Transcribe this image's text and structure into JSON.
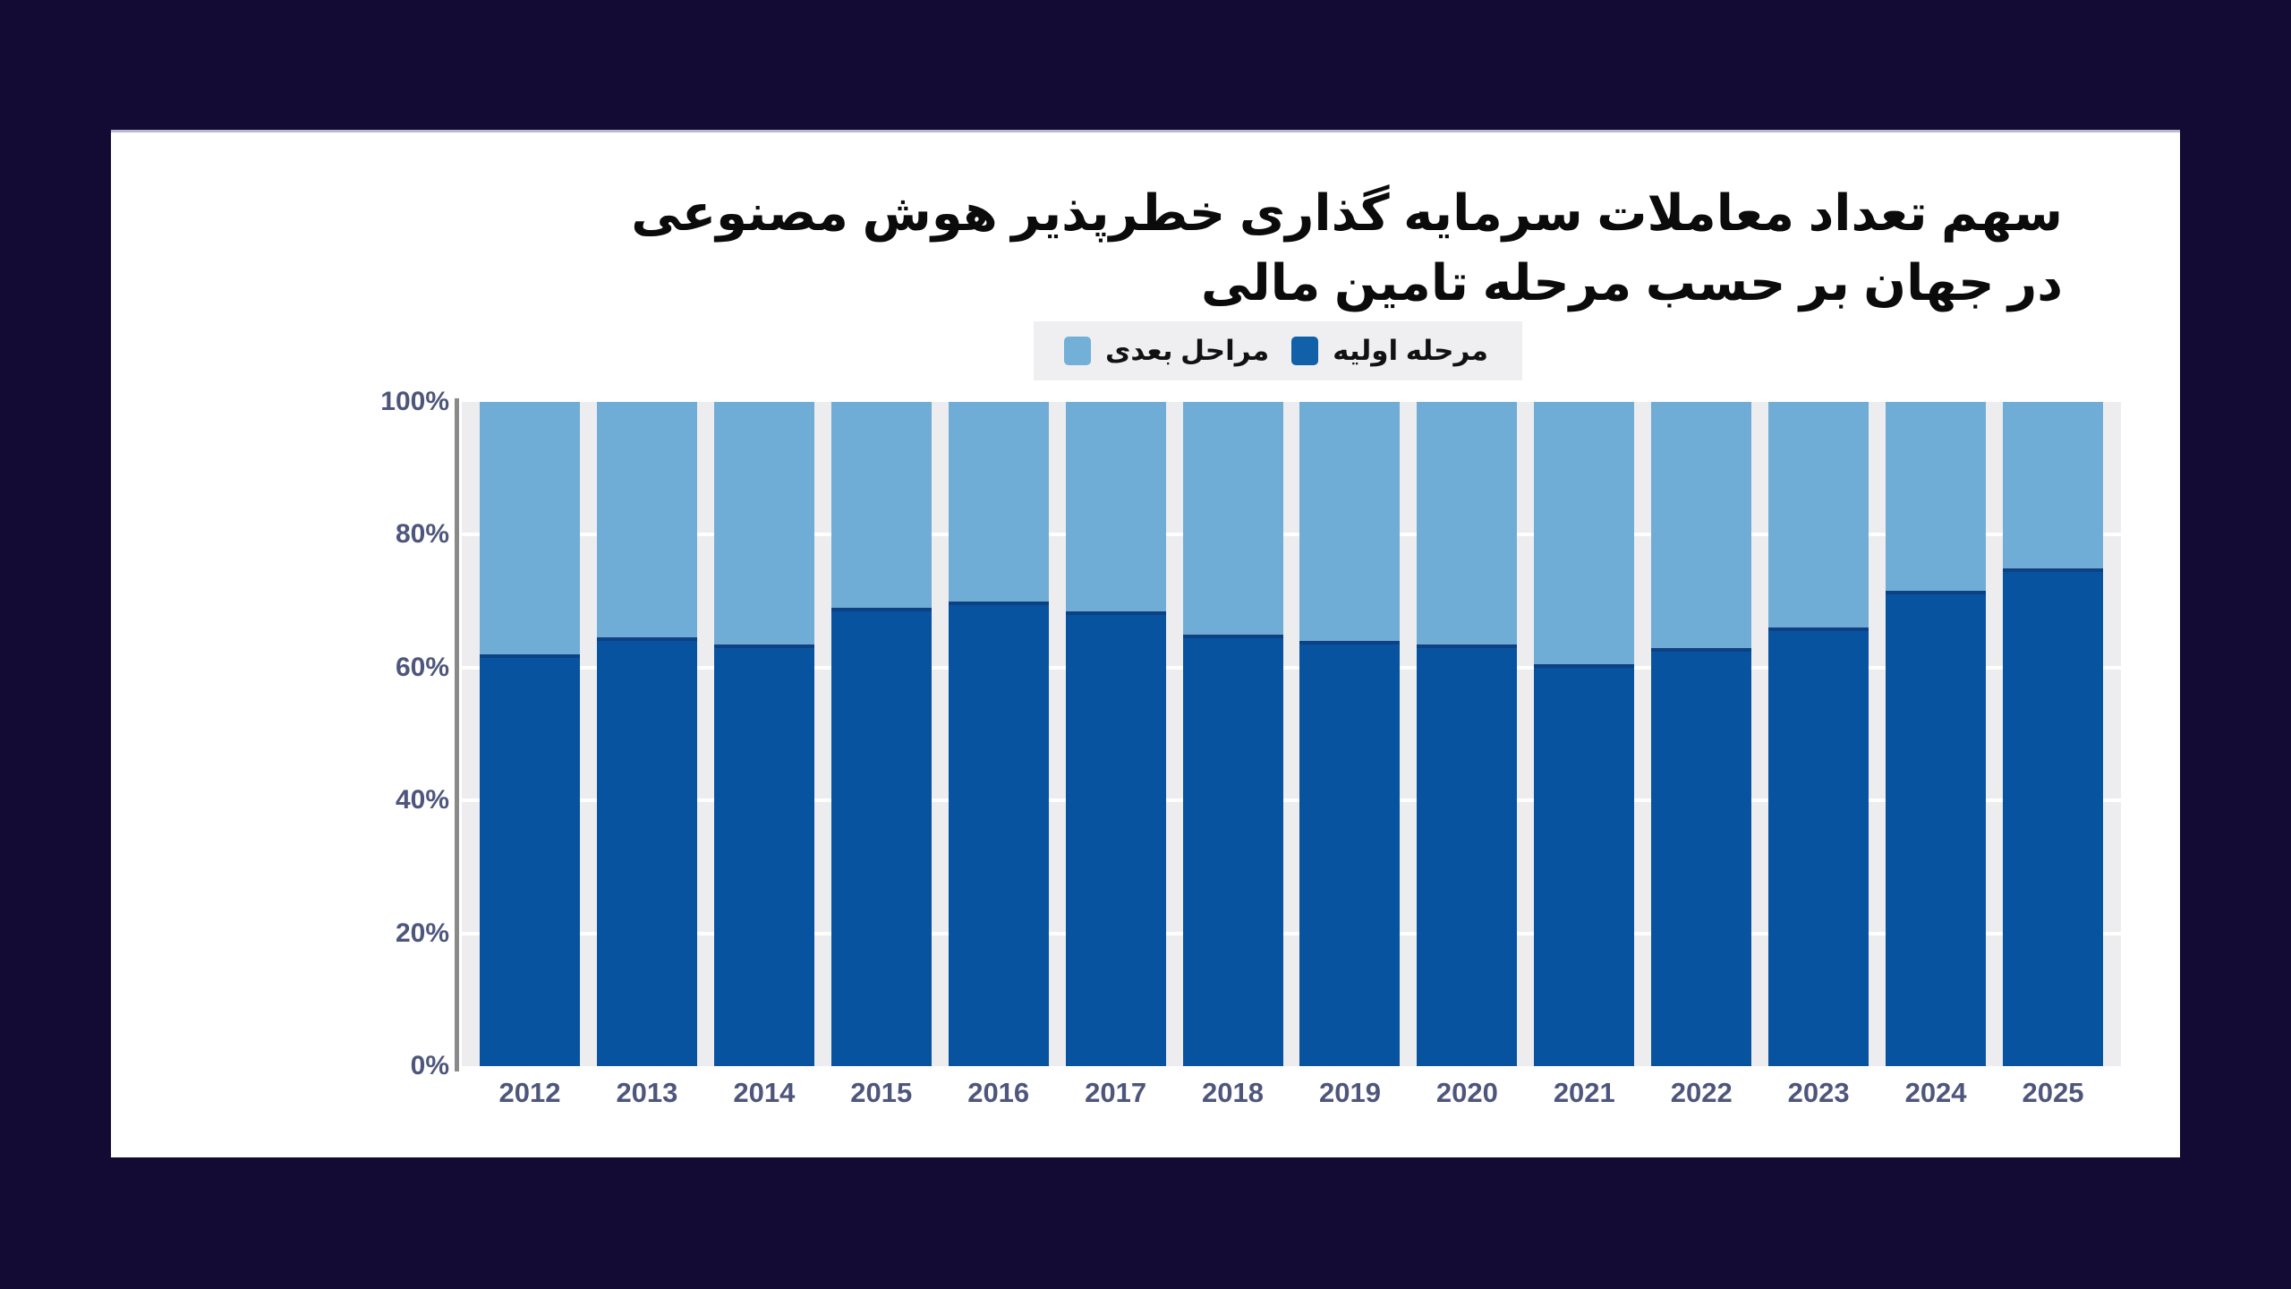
{
  "page": {
    "background_color": "#130b34",
    "card_color": "#ffffff"
  },
  "title": {
    "line1": "سهم تعداد معاملات سرمایه گذاری خطرپذیر هوش مصنوعی",
    "line2": "در جهان بر حسب مرحله تامین مالی"
  },
  "legend": {
    "background_color": "#efeff1",
    "items": [
      {
        "label": "مراحل بعدی",
        "color": "#72b0d8"
      },
      {
        "label": "مرحله اولیه",
        "color": "#1160a8"
      }
    ]
  },
  "chart_data": {
    "type": "bar",
    "stacked": true,
    "percent": true,
    "title": "سهم تعداد معاملات سرمایه گذاری خطرپذیر هوش مصنوعی در جهان بر حسب مرحله تامین مالی",
    "categories": [
      "2012",
      "2013",
      "2014",
      "2015",
      "2016",
      "2017",
      "2018",
      "2019",
      "2020",
      "2021",
      "2022",
      "2023",
      "2024",
      "2025"
    ],
    "series": [
      {
        "name": "مرحله اولیه",
        "color": "#0753a0",
        "edge_color": "#0d4183",
        "values": [
          62,
          64.5,
          63.5,
          69,
          70,
          68.5,
          65,
          64,
          63.5,
          60.5,
          63,
          66,
          71.5,
          75
        ]
      },
      {
        "name": "مراحل بعدی",
        "color": "#6fadd6",
        "values": [
          38,
          35.5,
          36.5,
          31,
          30,
          31.5,
          35,
          36,
          36.5,
          39.5,
          37,
          34,
          28.5,
          25
        ]
      }
    ],
    "xlabel": "",
    "ylabel": "",
    "ylim": [
      0,
      100
    ],
    "grid": true,
    "gridline_values": [
      20,
      40,
      60,
      80
    ],
    "gridline_color": "#ffffff",
    "plot_background": "#ededef",
    "legend_position": "top-center"
  },
  "y_axis": {
    "ticks": [
      {
        "label": "100%",
        "value": 100
      },
      {
        "label": "80%",
        "value": 80
      },
      {
        "label": "60%",
        "value": 60
      },
      {
        "label": "40%",
        "value": 40
      },
      {
        "label": "20%",
        "value": 20
      },
      {
        "label": "0%",
        "value": 0
      }
    ]
  }
}
